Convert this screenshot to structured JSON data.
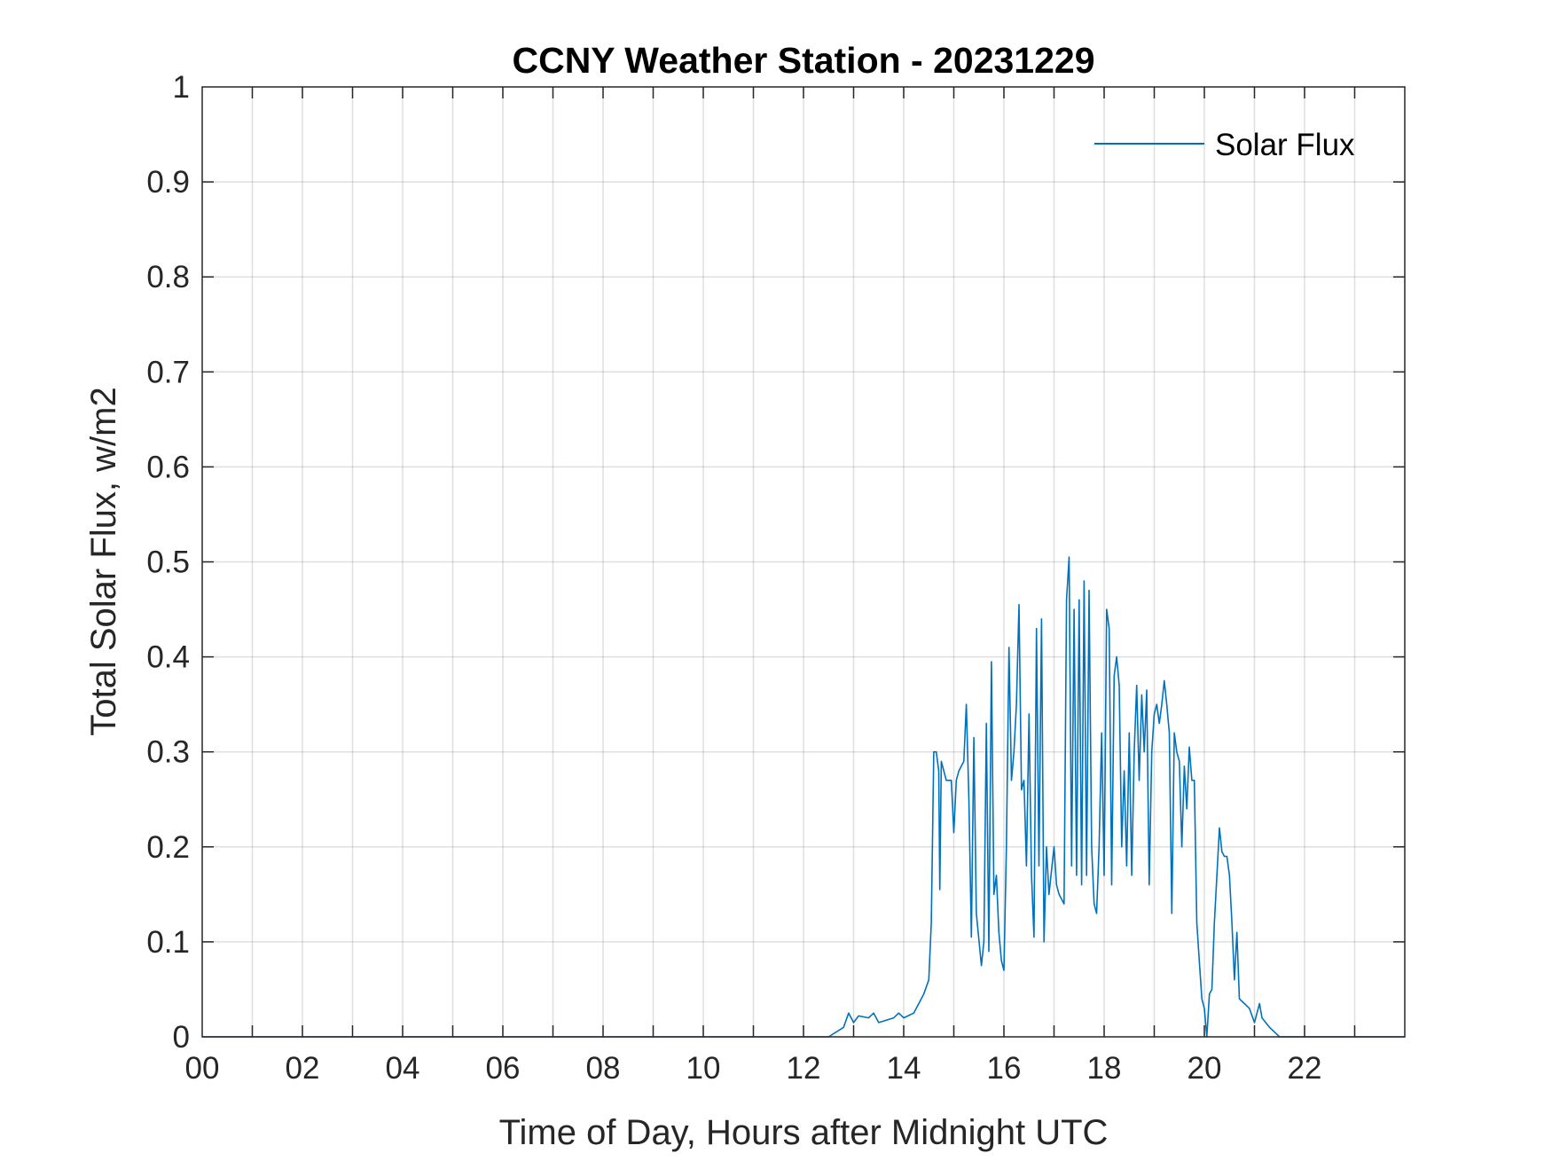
{
  "chart_data": {
    "type": "line",
    "title": "CCNY Weather Station - 20231229",
    "xlabel": "Time of Day, Hours after Midnight UTC",
    "ylabel": "Total Solar Flux, w/m2",
    "xlim": [
      0,
      24
    ],
    "ylim": [
      0,
      1
    ],
    "x_ticks": [
      0,
      2,
      4,
      6,
      8,
      10,
      12,
      14,
      16,
      18,
      20,
      22
    ],
    "x_tick_labels": [
      "00",
      "02",
      "04",
      "06",
      "08",
      "10",
      "12",
      "14",
      "16",
      "18",
      "20",
      "22"
    ],
    "y_ticks": [
      0,
      0.1,
      0.2,
      0.3,
      0.4,
      0.5,
      0.6,
      0.7,
      0.8,
      0.9,
      1
    ],
    "y_tick_labels": [
      "0",
      "0.1",
      "0.2",
      "0.3",
      "0.4",
      "0.5",
      "0.6",
      "0.7",
      "0.8",
      "0.9",
      "1"
    ],
    "grid": true,
    "legend": {
      "placement": "top-right",
      "entries": [
        "Solar Flux"
      ]
    },
    "series": [
      {
        "name": "Solar Flux",
        "color": "#0072BD",
        "points": [
          [
            0,
            0
          ],
          [
            12.5,
            0
          ],
          [
            12.8,
            0.01
          ],
          [
            12.9,
            0.025
          ],
          [
            13.0,
            0.015
          ],
          [
            13.1,
            0.022
          ],
          [
            13.3,
            0.02
          ],
          [
            13.4,
            0.025
          ],
          [
            13.5,
            0.015
          ],
          [
            13.8,
            0.02
          ],
          [
            13.9,
            0.025
          ],
          [
            14.0,
            0.02
          ],
          [
            14.2,
            0.025
          ],
          [
            14.3,
            0.035
          ],
          [
            14.4,
            0.045
          ],
          [
            14.5,
            0.06
          ],
          [
            14.55,
            0.12
          ],
          [
            14.6,
            0.3
          ],
          [
            14.65,
            0.3
          ],
          [
            14.7,
            0.28
          ],
          [
            14.72,
            0.155
          ],
          [
            14.75,
            0.29
          ],
          [
            14.8,
            0.28
          ],
          [
            14.85,
            0.27
          ],
          [
            14.95,
            0.27
          ],
          [
            15.0,
            0.215
          ],
          [
            15.05,
            0.27
          ],
          [
            15.1,
            0.28
          ],
          [
            15.2,
            0.29
          ],
          [
            15.25,
            0.35
          ],
          [
            15.3,
            0.25
          ],
          [
            15.35,
            0.105
          ],
          [
            15.4,
            0.315
          ],
          [
            15.45,
            0.13
          ],
          [
            15.55,
            0.075
          ],
          [
            15.6,
            0.1
          ],
          [
            15.65,
            0.33
          ],
          [
            15.7,
            0.09
          ],
          [
            15.75,
            0.395
          ],
          [
            15.8,
            0.15
          ],
          [
            15.85,
            0.17
          ],
          [
            15.9,
            0.11
          ],
          [
            15.95,
            0.08
          ],
          [
            16.0,
            0.07
          ],
          [
            16.05,
            0.2
          ],
          [
            16.1,
            0.41
          ],
          [
            16.15,
            0.27
          ],
          [
            16.2,
            0.3
          ],
          [
            16.25,
            0.35
          ],
          [
            16.3,
            0.455
          ],
          [
            16.35,
            0.26
          ],
          [
            16.4,
            0.27
          ],
          [
            16.45,
            0.18
          ],
          [
            16.5,
            0.34
          ],
          [
            16.55,
            0.17
          ],
          [
            16.6,
            0.105
          ],
          [
            16.65,
            0.43
          ],
          [
            16.7,
            0.18
          ],
          [
            16.75,
            0.44
          ],
          [
            16.8,
            0.1
          ],
          [
            16.85,
            0.2
          ],
          [
            16.9,
            0.15
          ],
          [
            17.0,
            0.2
          ],
          [
            17.05,
            0.16
          ],
          [
            17.1,
            0.15
          ],
          [
            17.2,
            0.14
          ],
          [
            17.25,
            0.46
          ],
          [
            17.3,
            0.505
          ],
          [
            17.35,
            0.18
          ],
          [
            17.4,
            0.45
          ],
          [
            17.45,
            0.17
          ],
          [
            17.5,
            0.46
          ],
          [
            17.55,
            0.16
          ],
          [
            17.6,
            0.48
          ],
          [
            17.65,
            0.17
          ],
          [
            17.7,
            0.47
          ],
          [
            17.75,
            0.2
          ],
          [
            17.8,
            0.14
          ],
          [
            17.85,
            0.13
          ],
          [
            17.9,
            0.2
          ],
          [
            17.95,
            0.32
          ],
          [
            18.0,
            0.17
          ],
          [
            18.05,
            0.45
          ],
          [
            18.1,
            0.43
          ],
          [
            18.15,
            0.16
          ],
          [
            18.2,
            0.38
          ],
          [
            18.25,
            0.4
          ],
          [
            18.3,
            0.37
          ],
          [
            18.35,
            0.2
          ],
          [
            18.4,
            0.28
          ],
          [
            18.45,
            0.18
          ],
          [
            18.5,
            0.32
          ],
          [
            18.55,
            0.17
          ],
          [
            18.6,
            0.3
          ],
          [
            18.65,
            0.37
          ],
          [
            18.7,
            0.27
          ],
          [
            18.75,
            0.36
          ],
          [
            18.8,
            0.3
          ],
          [
            18.85,
            0.365
          ],
          [
            18.9,
            0.16
          ],
          [
            18.95,
            0.3
          ],
          [
            19.0,
            0.34
          ],
          [
            19.05,
            0.35
          ],
          [
            19.1,
            0.33
          ],
          [
            19.15,
            0.35
          ],
          [
            19.2,
            0.375
          ],
          [
            19.25,
            0.35
          ],
          [
            19.3,
            0.32
          ],
          [
            19.35,
            0.13
          ],
          [
            19.4,
            0.32
          ],
          [
            19.45,
            0.3
          ],
          [
            19.5,
            0.29
          ],
          [
            19.55,
            0.2
          ],
          [
            19.6,
            0.285
          ],
          [
            19.65,
            0.24
          ],
          [
            19.7,
            0.305
          ],
          [
            19.75,
            0.27
          ],
          [
            19.8,
            0.27
          ],
          [
            19.85,
            0.12
          ],
          [
            19.9,
            0.08
          ],
          [
            19.95,
            0.04
          ],
          [
            20.0,
            0.03
          ],
          [
            20.05,
            0.0
          ],
          [
            20.1,
            0.045
          ],
          [
            20.15,
            0.05
          ],
          [
            20.2,
            0.12
          ],
          [
            20.3,
            0.22
          ],
          [
            20.35,
            0.195
          ],
          [
            20.4,
            0.19
          ],
          [
            20.45,
            0.19
          ],
          [
            20.5,
            0.17
          ],
          [
            20.55,
            0.12
          ],
          [
            20.6,
            0.06
          ],
          [
            20.65,
            0.11
          ],
          [
            20.7,
            0.04
          ],
          [
            20.8,
            0.035
          ],
          [
            20.9,
            0.03
          ],
          [
            21.0,
            0.015
          ],
          [
            21.1,
            0.035
          ],
          [
            21.15,
            0.02
          ],
          [
            21.3,
            0.01
          ],
          [
            21.5,
            0.0
          ],
          [
            24,
            0
          ]
        ]
      }
    ]
  }
}
